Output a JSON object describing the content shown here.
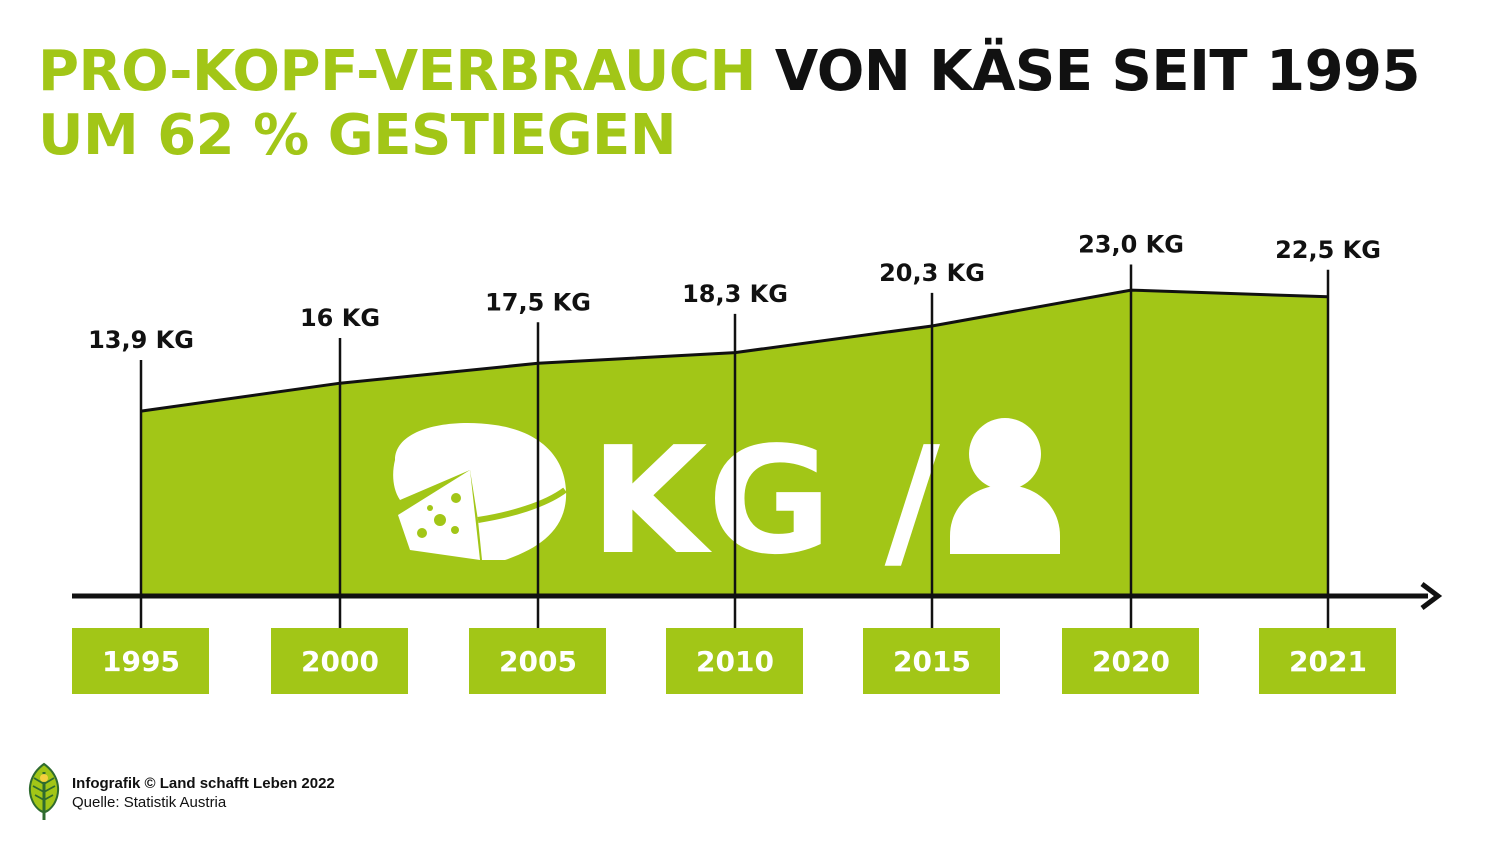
{
  "title": {
    "part1": "PRO-KOPF-VERBRAUCH",
    "part2": "VON KÄSE SEIT 1995",
    "part3": "UM 62 % GESTIEGEN"
  },
  "colors": {
    "accent": "#a2c617",
    "text": "#111111",
    "white": "#ffffff"
  },
  "chart_data": {
    "type": "area",
    "title": "PRO-KOPF-VERBRAUCH VON KÄSE SEIT 1995 UM 62 % GESTIEGEN",
    "categories": [
      "1995",
      "2000",
      "2005",
      "2010",
      "2015",
      "2020",
      "2021"
    ],
    "values": [
      13.9,
      16,
      17.5,
      18.3,
      20.3,
      23.0,
      22.5
    ],
    "data_labels": [
      "13,9 KG",
      "16 KG",
      "17,5 KG",
      "18,3 KG",
      "20,3 KG",
      "23,0 KG",
      "22,5 KG"
    ],
    "center_label": "KG /",
    "center_icons": [
      "cheese-wheel-icon",
      "person-icon"
    ],
    "grid": false,
    "legend": "none"
  },
  "footer": {
    "credit": "Infografik © Land schafft Leben 2022",
    "source": "Quelle: Statistik Austria",
    "logo_icon": "leaf-logo-icon"
  }
}
